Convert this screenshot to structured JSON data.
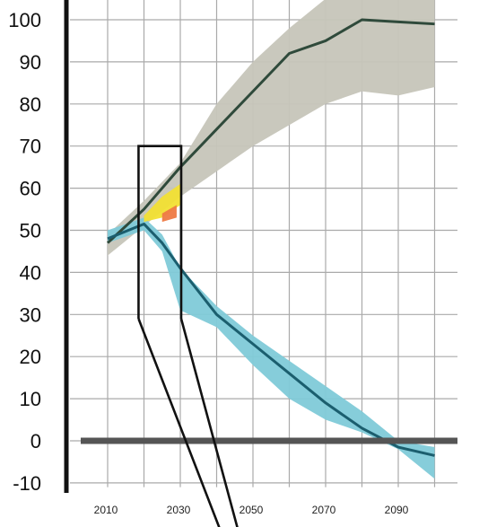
{
  "chart_data": {
    "type": "area",
    "title": "",
    "xlabel": "",
    "ylabel": "",
    "xlim": [
      2003,
      2106
    ],
    "ylim": [
      -11,
      104
    ],
    "x_ticks": [
      2010,
      2030,
      2050,
      2070,
      2090
    ],
    "x_tick_labels": [
      "2010",
      "2030",
      "2050",
      "2070",
      "2090"
    ],
    "x_grid": [
      2010,
      2020,
      2030,
      2040,
      2050,
      2060,
      2070,
      2080,
      2090,
      2100
    ],
    "y_ticks": [
      100,
      90,
      80,
      70,
      60,
      50,
      40,
      30,
      20,
      10,
      0,
      -10
    ],
    "y_tick_labels": [
      "100",
      "90",
      "80",
      "70",
      "60",
      "50",
      "40",
      "30",
      "20",
      "10",
      "0",
      "-10"
    ],
    "grid": true,
    "zero_line": 0,
    "colors": {
      "upper_band": "#c6c5b9",
      "upper_line": "#2f4a3b",
      "lower_band": "#7fcad8",
      "lower_line": "#1b5e6e",
      "mid_band": "#f2e033",
      "mid_band_2": "#ee7a45",
      "frame": "#111111",
      "grid": "#aaaaaa",
      "zero_line": "#555555"
    },
    "series": [
      {
        "type": "band",
        "color_key": "upper_band",
        "x": [
          2010,
          2020,
          2030,
          2040,
          2050,
          2060,
          2070,
          2080,
          2090,
          2100
        ],
        "lower": [
          44,
          51,
          58,
          64,
          70,
          75,
          80,
          83,
          82,
          84
        ],
        "upper": [
          49,
          57,
          66,
          80,
          90,
          98,
          105,
          105,
          105,
          105
        ]
      },
      {
        "type": "line",
        "color_key": "upper_line",
        "x": [
          2010,
          2020,
          2030,
          2040,
          2050,
          2060,
          2070,
          2080,
          2090,
          2100
        ],
        "values": [
          47,
          55,
          65,
          74,
          83,
          92,
          95,
          100,
          99.5,
          99
        ]
      },
      {
        "type": "band",
        "color_key": "lower_band",
        "x": [
          2010,
          2020,
          2025,
          2030,
          2040,
          2050,
          2060,
          2070,
          2080,
          2090,
          2100
        ],
        "lower": [
          47,
          50,
          45,
          31,
          27,
          18,
          10,
          5,
          2,
          -2,
          -9
        ],
        "upper": [
          50,
          53,
          49,
          41,
          32,
          25,
          19,
          13,
          7,
          0,
          -1.5
        ]
      },
      {
        "type": "line",
        "color_key": "lower_line",
        "x": [
          2010,
          2020,
          2025,
          2030,
          2040,
          2050,
          2060,
          2070,
          2080,
          2090,
          2100
        ],
        "values": [
          48,
          51.5,
          47,
          41,
          30,
          23,
          16,
          9,
          3,
          -1.5,
          -3.5
        ]
      },
      {
        "type": "band",
        "color_key": "mid_band",
        "x": [
          2020,
          2025,
          2030
        ],
        "lower": [
          52,
          53,
          56
        ],
        "upper": [
          53.5,
          58,
          61
        ]
      },
      {
        "type": "band",
        "color_key": "mid_band_2",
        "x": [
          2025,
          2029
        ],
        "lower": [
          52,
          53
        ],
        "upper": [
          54,
          56
        ]
      }
    ],
    "zoom_box": {
      "x": [
        2019,
        2030
      ],
      "y": [
        29,
        70
      ]
    }
  }
}
